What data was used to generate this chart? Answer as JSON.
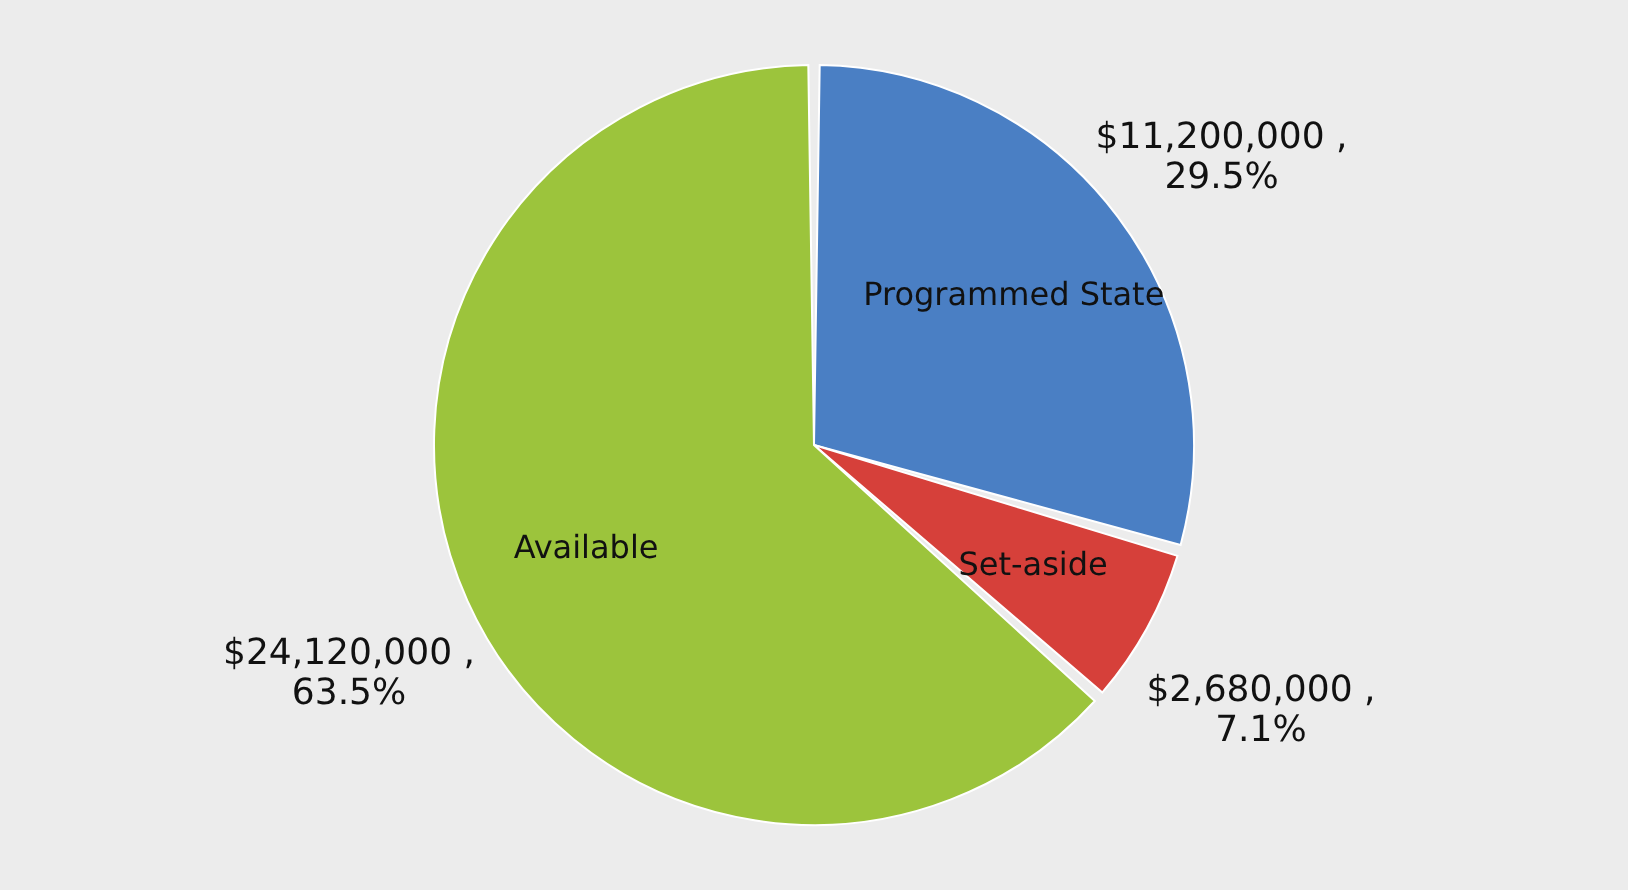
{
  "chart_data": {
    "type": "pie",
    "categories": [
      "Programmed State",
      "Set-aside",
      "Available"
    ],
    "values": [
      11200000,
      2680000,
      24120000
    ],
    "colors": [
      "#4a7fc4",
      "#d6403a",
      "#9cc43c"
    ],
    "value_labels": [
      "$11,200,000 ,\n29.5%",
      "$2,680,000 ,\n7.1%",
      "$24,120,000 ,\n63.5%"
    ],
    "legend": false
  }
}
